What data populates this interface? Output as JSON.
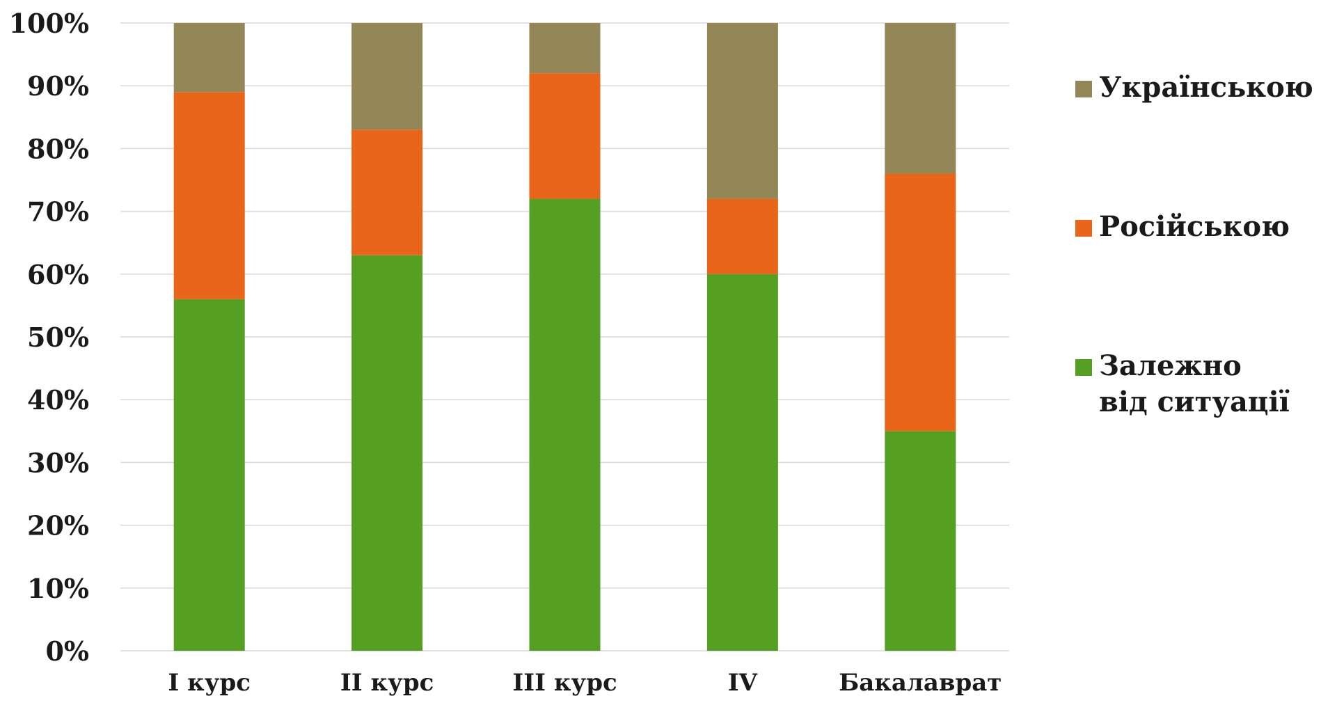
{
  "chart_data": {
    "type": "bar",
    "stacked": true,
    "percent": true,
    "categories": [
      "І курс",
      "ІІ курс",
      "ІІІ курс",
      "IV",
      "Бакалаврат"
    ],
    "series": [
      {
        "name": "Залежно від ситуації",
        "color": "#55a023",
        "values": [
          56,
          63,
          72,
          60,
          35
        ]
      },
      {
        "name": "Російською",
        "color": "#e8651a",
        "values": [
          33,
          20,
          20,
          12,
          41
        ]
      },
      {
        "name": "Українською",
        "color": "#948757",
        "values": [
          11,
          17,
          8,
          28,
          24
        ]
      }
    ],
    "ylim": [
      0,
      100
    ],
    "yticks": [
      "0%",
      "10%",
      "20%",
      "30%",
      "40%",
      "50%",
      "60%",
      "70%",
      "80%",
      "90%",
      "100%"
    ],
    "grid": true,
    "legend_position": "right",
    "legend_order": [
      "Українською",
      "Російською",
      "Залежно від ситуації"
    ]
  }
}
